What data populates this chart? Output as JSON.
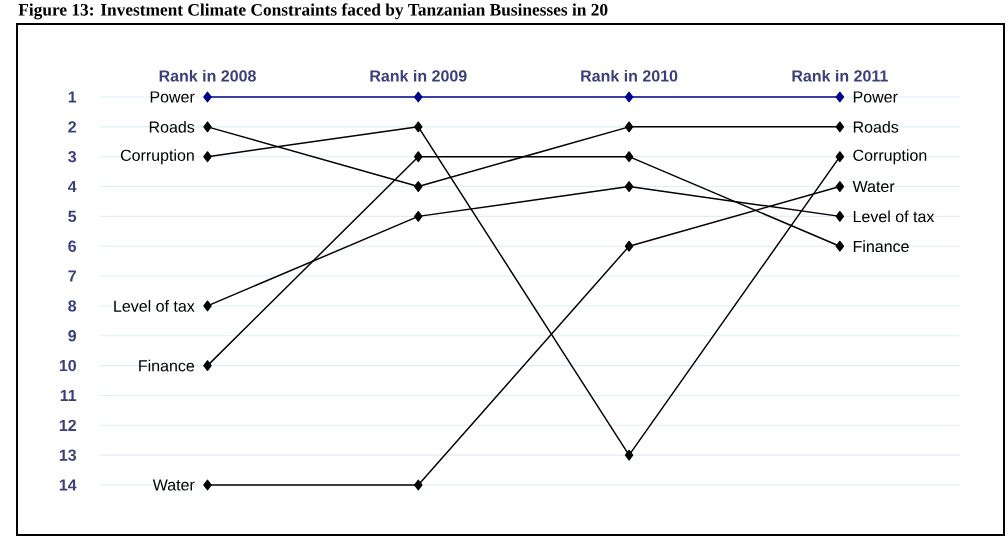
{
  "chart_data": {
    "type": "line",
    "title": "Figure 13: Investment Climate Constraints faced by Tanzanian Businesses in 20",
    "categories": [
      "Rank in 2008",
      "Rank in 2009",
      "Rank in 2010",
      "Rank in 2011"
    ],
    "series": [
      {
        "name": "Power",
        "color": "#00008b",
        "values": [
          1,
          1,
          1,
          1
        ]
      },
      {
        "name": "Roads",
        "color": "#000000",
        "values": [
          2,
          4,
          2,
          2
        ]
      },
      {
        "name": "Corruption",
        "color": "#000000",
        "values": [
          3,
          2,
          13,
          3
        ]
      },
      {
        "name": "Water",
        "color": "#000000",
        "values": [
          14,
          14,
          6,
          4
        ]
      },
      {
        "name": "Level of tax",
        "color": "#000000",
        "values": [
          8,
          5,
          4,
          5
        ]
      },
      {
        "name": "Finance",
        "color": "#000000",
        "values": [
          10,
          3,
          3,
          6
        ]
      }
    ],
    "ylim": [
      14,
      1
    ],
    "yticks": [
      1,
      2,
      3,
      4,
      5,
      6,
      7,
      8,
      9,
      10,
      11,
      12,
      13,
      14
    ],
    "grid": "y",
    "marker": "diamond",
    "line_style": "solid"
  }
}
